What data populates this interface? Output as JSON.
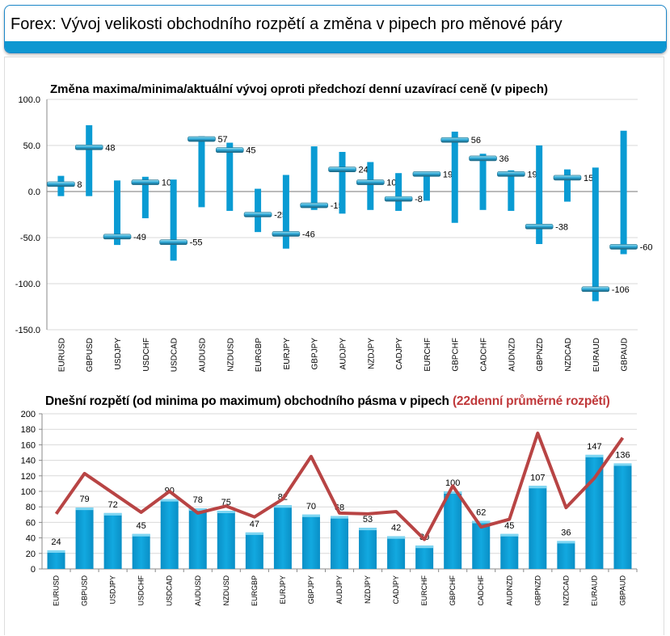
{
  "header": {
    "title": "Forex: Vývoj velikosti obchodního rozpětí a změna v pipech pro měnové páry"
  },
  "colors": {
    "bar": "#0a9bd3",
    "line": "#b84444",
    "accent": "#0d97d1"
  },
  "chart_data": [
    {
      "type": "range-bar",
      "title": "Změna maxima/minima/aktuální vývoj oproti předchozí denní uzavírací ceně (v pipech)",
      "ylim": [
        -150,
        100
      ],
      "yticks": [
        "100.0",
        "50.0",
        "0.0",
        "-50.0",
        "-100.0",
        "-150.0"
      ],
      "grid": true,
      "categories": [
        "EURUSD",
        "GBPUSD",
        "USDJPY",
        "USDCHF",
        "USDCAD",
        "AUDUSD",
        "NZDUSD",
        "EURGBP",
        "EURJPY",
        "GBPJPY",
        "AUDJPY",
        "NZDJPY",
        "CADJPY",
        "EURCHF",
        "GBPCHF",
        "CADCHF",
        "AUDNZD",
        "GBPNZD",
        "NZDCAD",
        "EURAUD",
        "GBPAUD"
      ],
      "high": [
        17,
        72,
        12,
        16,
        13,
        60,
        53,
        3,
        18,
        49,
        43,
        32,
        20,
        19,
        65,
        41,
        23,
        50,
        24,
        26,
        66
      ],
      "low": [
        -5,
        -5,
        -58,
        -29,
        -75,
        -17,
        -21,
        -44,
        -62,
        -20,
        -24,
        -20,
        -21,
        -10,
        -34,
        -20,
        -21,
        -57,
        -11,
        -119,
        -68
      ],
      "current": [
        8,
        48,
        -49,
        10,
        -55,
        57,
        45,
        -25,
        -46,
        -15,
        24,
        10,
        -8,
        19,
        56,
        36,
        19,
        -38,
        15,
        -106,
        -60
      ]
    },
    {
      "type": "bar+line",
      "title": "Dnešní rozpětí (od minima po maximum) obchodního pásma v pipech",
      "title_highlight": "(22denní průměrné rozpětí)",
      "ylim": [
        0,
        200
      ],
      "yticks": [
        "200",
        "180",
        "160",
        "140",
        "120",
        "100",
        "80",
        "60",
        "40",
        "20",
        "0"
      ],
      "grid": true,
      "categories": [
        "EURUSD",
        "GBPUSD",
        "USDJPY",
        "USDCHF",
        "USDCAD",
        "AUDUSD",
        "NZDUSD",
        "EURGBP",
        "EURJPY",
        "GBPJPY",
        "AUDJPY",
        "NZDJPY",
        "CADJPY",
        "EURCHF",
        "GBPCHF",
        "CADCHF",
        "AUDNZD",
        "GBPNZD",
        "NZDCAD",
        "EURAUD",
        "GBPAUD"
      ],
      "series": [
        {
          "type": "bar",
          "values": [
            24,
            79,
            72,
            45,
            90,
            78,
            75,
            47,
            82,
            70,
            68,
            53,
            42,
            30,
            100,
            62,
            45,
            107,
            36,
            147,
            136
          ]
        },
        {
          "type": "line",
          "values": [
            71,
            123,
            98,
            73,
            100,
            72,
            81,
            67,
            90,
            145,
            72,
            71,
            74,
            38,
            107,
            54,
            64,
            175,
            79,
            117,
            169
          ]
        }
      ]
    }
  ]
}
